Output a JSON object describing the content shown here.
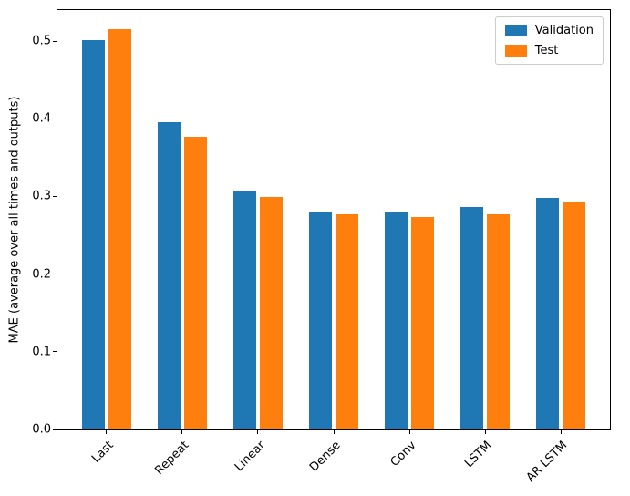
{
  "chart_data": {
    "type": "bar",
    "categories": [
      "Last",
      "Repeat",
      "Linear",
      "Dense",
      "Conv",
      "LSTM",
      "AR LSTM"
    ],
    "series": [
      {
        "name": "Validation",
        "color": "#1f77b4",
        "values": [
          0.501,
          0.396,
          0.306,
          0.281,
          0.281,
          0.287,
          0.298
        ]
      },
      {
        "name": "Test",
        "color": "#ff7f0e",
        "values": [
          0.515,
          0.377,
          0.299,
          0.277,
          0.274,
          0.277,
          0.292
        ]
      }
    ],
    "title": "",
    "xlabel": "",
    "ylabel": "MAE (average over all times and outputs)",
    "yticks": [
      0.0,
      0.1,
      0.2,
      0.3,
      0.4,
      0.5
    ],
    "ylim": [
      0,
      0.54
    ],
    "grid": false,
    "legend": {
      "position": "upper right"
    },
    "bar_group": {
      "offset_units": 0.17,
      "width_units": 0.3,
      "edge_margin_units": 0.65
    }
  }
}
